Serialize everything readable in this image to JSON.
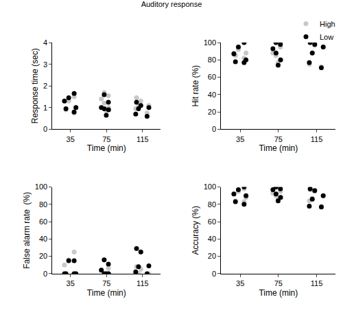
{
  "title": "Auditory response",
  "legend": "top right",
  "chart_data": [
    {
      "type": "scatter",
      "x_label": "Time (min)",
      "y_label": "Response time (sec)",
      "categories": [
        "35",
        "75",
        "115"
      ],
      "ylim": [
        0,
        4
      ],
      "yticks": [
        0,
        1,
        2,
        3,
        4
      ],
      "grid": false,
      "series": [
        {
          "name": "High",
          "color": "#c8c8c8",
          "values": [
            [
              1.5,
              1.3,
              1.3,
              1.0,
              0.9,
              0.75
            ],
            [
              1.7,
              1.55,
              1.4,
              1.2,
              1.0,
              0.85
            ],
            [
              1.45,
              1.3,
              1.1,
              1.05,
              0.95,
              0.75
            ]
          ]
        },
        {
          "name": "Low",
          "color": "#000000",
          "values": [
            [
              1.45,
              1.65,
              1.3,
              1.0,
              0.95,
              0.8
            ],
            [
              1.6,
              1.25,
              1.0,
              0.95,
              0.9,
              0.65
            ],
            [
              1.25,
              1.1,
              1.0,
              0.95,
              0.7,
              0.6
            ]
          ]
        }
      ]
    },
    {
      "type": "scatter",
      "x_label": "Time (min)",
      "y_label": "Hit rate (%)",
      "categories": [
        "35",
        "75",
        "115"
      ],
      "ylim": [
        0,
        100
      ],
      "yticks": [
        0,
        20,
        40,
        60,
        80,
        100
      ],
      "grid": false,
      "series": [
        {
          "name": "High",
          "color": "#c8c8c8",
          "values": [
            [
              100,
              92,
              88,
              85,
              82,
              88
            ],
            [
              100,
              95,
              88,
              85,
              80,
              77
            ],
            [
              100,
              97,
              95,
              88,
              75,
              72
            ]
          ]
        },
        {
          "name": "Low",
          "color": "#000000",
          "values": [
            [
              100,
              95,
              87,
              80,
              78,
              77
            ],
            [
              100,
              98,
              93,
              88,
              80,
              74
            ],
            [
              100,
              98,
              95,
              88,
              77,
              71
            ]
          ]
        }
      ]
    },
    {
      "type": "scatter",
      "x_label": "Time (min)",
      "y_label": "False alarm rate  (%)",
      "categories": [
        "35",
        "75",
        "115"
      ],
      "ylim": [
        0,
        100
      ],
      "yticks": [
        0,
        20,
        40,
        60,
        80,
        100
      ],
      "grid": false,
      "series": [
        {
          "name": "High",
          "color": "#c8c8c8",
          "values": [
            [
              25,
              16,
              10,
              0,
              0,
              0
            ],
            [
              16,
              6,
              4,
              0,
              0,
              0
            ],
            [
              8,
              5,
              0,
              0,
              0,
              0
            ]
          ]
        },
        {
          "name": "Low",
          "color": "#000000",
          "values": [
            [
              15,
              15,
              0,
              0,
              0,
              0
            ],
            [
              16,
              11,
              4,
              0,
              0,
              0
            ],
            [
              29,
              25,
              9,
              8,
              2,
              0
            ]
          ]
        }
      ]
    },
    {
      "type": "scatter",
      "x_label": "Time (min)",
      "y_label": "Accuracy (%)",
      "categories": [
        "35",
        "75",
        "115"
      ],
      "ylim": [
        0,
        100
      ],
      "yticks": [
        0,
        20,
        40,
        60,
        80,
        100
      ],
      "grid": false,
      "series": [
        {
          "name": "High",
          "color": "#c8c8c8",
          "values": [
            [
              98,
              95,
              92,
              88,
              84,
              83
            ],
            [
              100,
              95,
              93,
              90,
              88,
              86
            ],
            [
              97,
              95,
              90,
              87,
              84,
              78
            ]
          ]
        },
        {
          "name": "Low",
          "color": "#000000",
          "values": [
            [
              100,
              97,
              92,
              90,
              83,
              80
            ],
            [
              100,
              98,
              97,
              92,
              88,
              84
            ],
            [
              98,
              96,
              90,
              86,
              78,
              77
            ]
          ]
        }
      ]
    }
  ]
}
